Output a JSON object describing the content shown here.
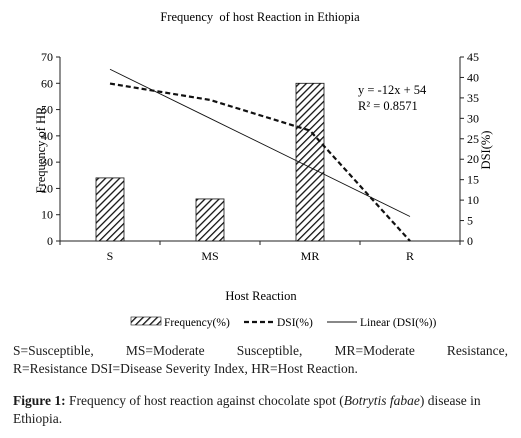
{
  "chart_data": {
    "type": "bar",
    "title": "Frequency  of host Reaction in Ethiopia",
    "xlabel": "Host Reaction",
    "ylabel_left": "Frequency of HR",
    "ylabel_right": "DSI(%)",
    "categories": [
      "S",
      "MS",
      "MR",
      "R"
    ],
    "ylim_left": [
      0,
      70
    ],
    "yticks_left": [
      0,
      10,
      20,
      30,
      40,
      50,
      60,
      70
    ],
    "ylim_right": [
      0,
      45
    ],
    "yticks_right": [
      0,
      5,
      10,
      15,
      20,
      25,
      30,
      35,
      40,
      45
    ],
    "series": [
      {
        "name": "Frequency(%)",
        "kind": "bar",
        "axis": "left",
        "pattern": "diagonal-hatch",
        "values": [
          24,
          16,
          60,
          0
        ]
      },
      {
        "name": "DSI(%)",
        "kind": "line",
        "style": "dashed",
        "axis": "right",
        "values": [
          38.5,
          34.5,
          27,
          0
        ]
      },
      {
        "name": "Linear (DSI(%))",
        "kind": "line",
        "style": "solid",
        "axis": "right",
        "values": [
          42,
          30,
          18,
          6
        ]
      }
    ],
    "trendline": {
      "equation": "y = -12x + 54",
      "r2": "R² = 0.8571"
    },
    "grid": false,
    "legend_position": "bottom"
  },
  "abbreviations": {
    "line1": "S=Susceptible, MS=Moderate Susceptible, MR=Moderate Resistance,",
    "line2": "R=Resistance DSI=Disease Severity Index, HR=Host Reaction."
  },
  "figure_caption": {
    "label": "Figure 1:",
    "text_before": " Frequency of host reaction against chocolate spot (",
    "italic_text": "Botrytis fabae",
    "text_after": ") disease in Ethiopia."
  }
}
